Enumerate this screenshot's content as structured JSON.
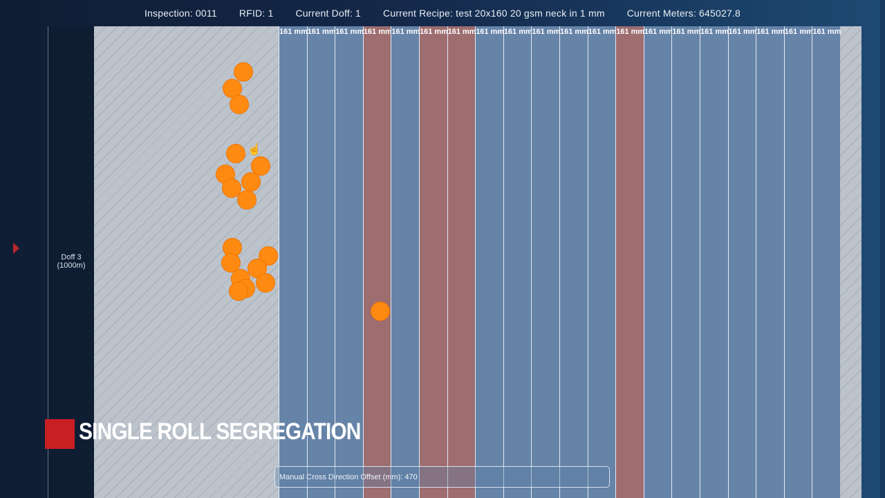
{
  "header": {
    "inspection": "Inspection: 0011",
    "rfid": "RFID: 1",
    "doff": "Current Doff: 1",
    "recipe": "Current Recipe: test 20x160 20 gsm neck in 1 mm",
    "meters": "Current Meters: 645027.8"
  },
  "doff_label": {
    "line1": "Doff 3",
    "line2": "(1000m)"
  },
  "lane_width_label": "161 mm",
  "lanes": [
    {
      "status": "ok"
    },
    {
      "status": "ok"
    },
    {
      "status": "ok"
    },
    {
      "status": "rejected"
    },
    {
      "status": "ok"
    },
    {
      "status": "rejected"
    },
    {
      "status": "rejected"
    },
    {
      "status": "ok"
    },
    {
      "status": "ok"
    },
    {
      "status": "ok"
    },
    {
      "status": "ok"
    },
    {
      "status": "ok"
    },
    {
      "status": "rejected"
    },
    {
      "status": "ok"
    },
    {
      "status": "ok"
    },
    {
      "status": "ok"
    },
    {
      "status": "ok"
    },
    {
      "status": "ok"
    },
    {
      "status": "ok"
    },
    {
      "status": "ok"
    }
  ],
  "colors": {
    "lane_ok": "#6683a8",
    "lane_rejected": "#9d6d70",
    "defect": "#ff8a12",
    "badge": "#c81f22"
  },
  "overlay_title": "SINGLE ROLL SEGREGATION",
  "offset_text": "Manual Cross Direction Offset (mm): 470"
}
